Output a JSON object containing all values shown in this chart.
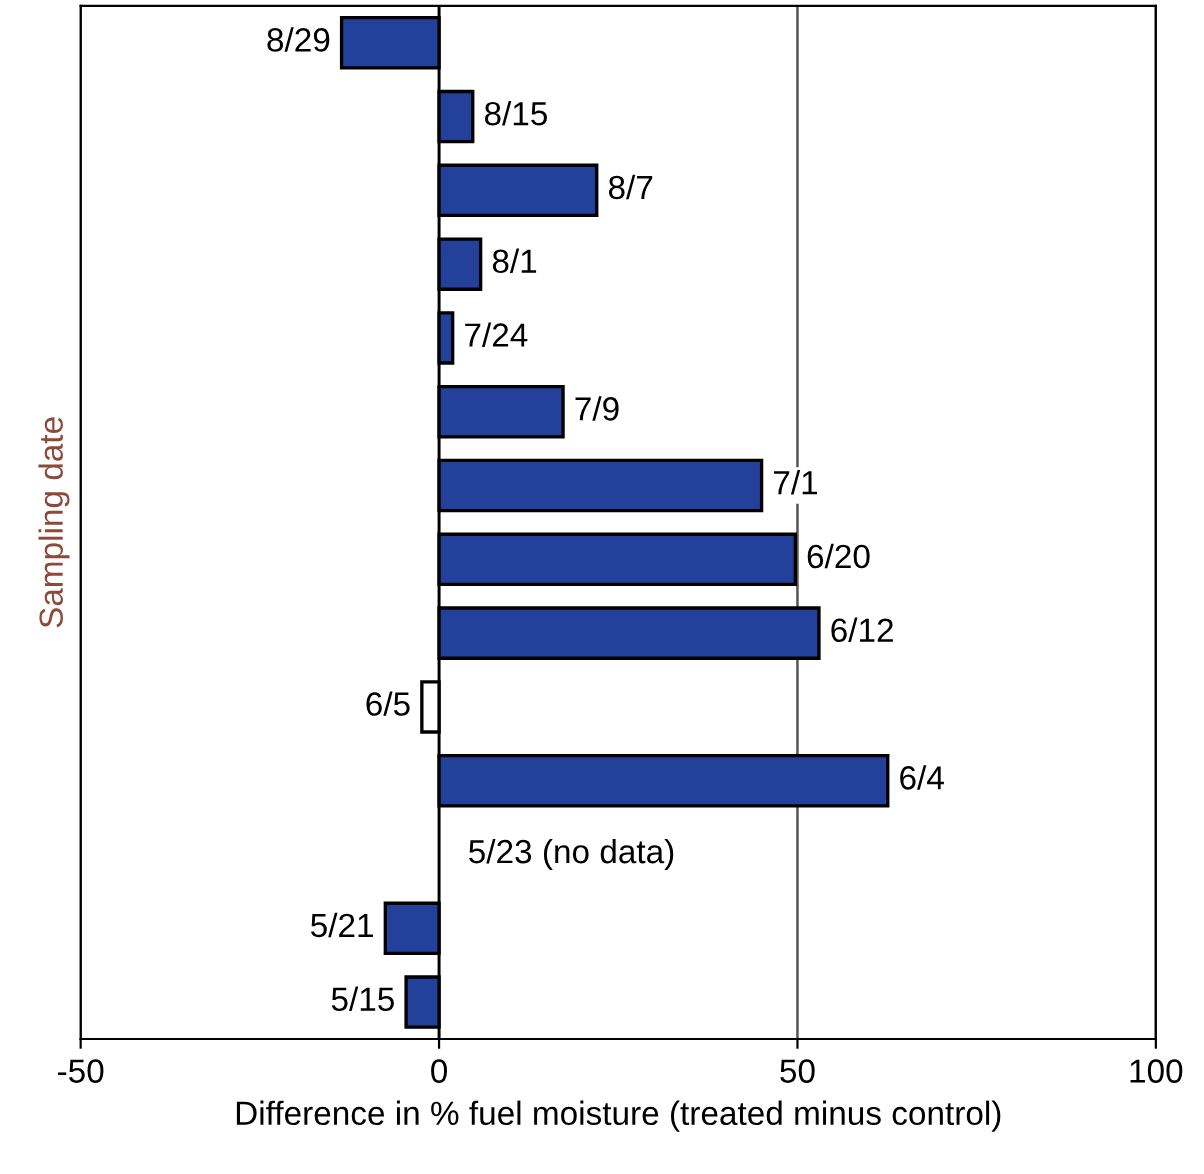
{
  "chart_data": {
    "type": "bar",
    "orientation": "horizontal",
    "xlabel": "Difference in % fuel moisture (treated minus control)",
    "ylabel": "Sampling date",
    "categories": [
      "8/29",
      "8/15",
      "8/7",
      "8/1",
      "7/24",
      "7/9",
      "7/1",
      "6/20",
      "6/12",
      "6/5",
      "6/4",
      "5/23 (no data)",
      "5/21",
      "5/15"
    ],
    "values": [
      -13.6,
      4.7,
      22,
      5.8,
      1.9,
      17.3,
      45,
      49.7,
      53,
      -2.4,
      62.6,
      null,
      -7.5,
      -4.6
    ],
    "colors": [
      "#23409a",
      "#23409a",
      "#23409a",
      "#23409a",
      "#23409a",
      "#23409a",
      "#23409a",
      "#23409a",
      "#23409a",
      "#ffffff",
      "#23409a",
      "#23409a",
      "#23409a",
      "#23409a"
    ],
    "xlim": [
      -50,
      100
    ],
    "xticks": [
      -50,
      0,
      50,
      100
    ],
    "grid": "x",
    "tick_labels": "x"
  }
}
